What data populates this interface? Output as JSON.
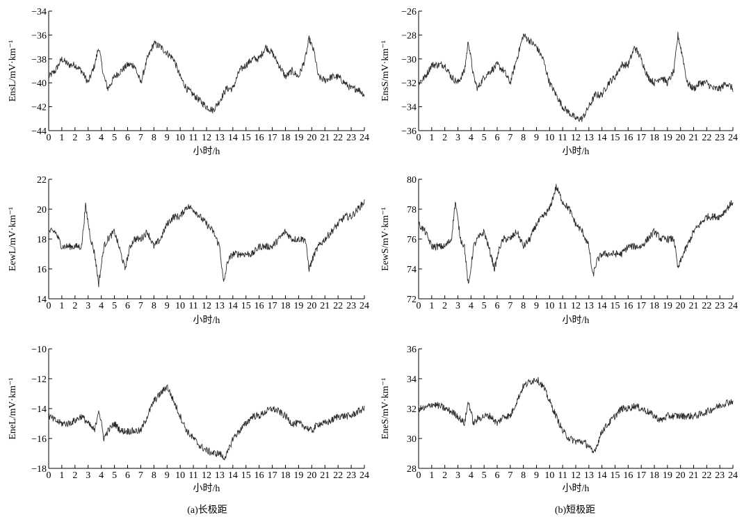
{
  "captions": [
    "(a)长极距",
    "(b)短极距"
  ],
  "chart_data": [
    {
      "type": "line",
      "ylabel": "EnsL/mV·km⁻¹",
      "xlabel": "小时/h",
      "xlim": [
        0,
        24
      ],
      "ylim": [
        -44,
        -34
      ],
      "yticks": [
        -44,
        -42,
        -40,
        -38,
        -36,
        -34
      ],
      "xticks": [
        0,
        1,
        2,
        3,
        4,
        5,
        6,
        7,
        8,
        9,
        10,
        11,
        12,
        13,
        14,
        15,
        16,
        17,
        18,
        19,
        20,
        21,
        22,
        23,
        24
      ],
      "series": [
        {
          "x": [
            0,
            0.5,
            1,
            1.5,
            2,
            2.5,
            3,
            3.5,
            3.8,
            4.2,
            4.5,
            5,
            5.5,
            6,
            6.5,
            7,
            7.5,
            8,
            8.5,
            9,
            9.5,
            10,
            10.5,
            11,
            11.5,
            12,
            12.5,
            13,
            13.5,
            14,
            14.5,
            15,
            15.5,
            16,
            16.5,
            17,
            17.5,
            18,
            18.5,
            19,
            19.5,
            19.8,
            20.2,
            20.5,
            21,
            21.5,
            22,
            22.5,
            23,
            23.5,
            24
          ],
          "y": [
            -39.5,
            -39,
            -38,
            -38.5,
            -38.5,
            -39,
            -40,
            -38.5,
            -37,
            -39.5,
            -40.5,
            -39.5,
            -39,
            -38.5,
            -38.5,
            -40,
            -38,
            -36.7,
            -37,
            -37.5,
            -38,
            -39.5,
            -40.5,
            -41,
            -41.5,
            -42,
            -42.3,
            -41.5,
            -40.5,
            -40.5,
            -39,
            -38.5,
            -38,
            -38,
            -37,
            -37.5,
            -38.5,
            -39.5,
            -39,
            -39.5,
            -38,
            -36.3,
            -37.5,
            -39.5,
            -39.8,
            -39.5,
            -39.5,
            -40,
            -40.5,
            -40.5,
            -41
          ]
        }
      ]
    },
    {
      "type": "line",
      "ylabel": "EnsS/mV·km⁻¹",
      "xlabel": "小时/h",
      "xlim": [
        0,
        24
      ],
      "ylim": [
        -36,
        -26
      ],
      "yticks": [
        -36,
        -34,
        -32,
        -30,
        -28,
        -26
      ],
      "xticks": [
        0,
        1,
        2,
        3,
        4,
        5,
        6,
        7,
        8,
        9,
        10,
        11,
        12,
        13,
        14,
        15,
        16,
        17,
        18,
        19,
        20,
        21,
        22,
        23,
        24
      ],
      "series": [
        {
          "x": [
            0,
            0.5,
            1,
            1.5,
            2,
            2.5,
            3,
            3.5,
            3.8,
            4.2,
            4.5,
            5,
            5.5,
            6,
            6.5,
            7,
            7.5,
            8,
            8.5,
            9,
            9.5,
            10,
            10.5,
            11,
            11.5,
            12,
            12.5,
            13,
            13.5,
            14,
            14.5,
            15,
            15.5,
            16,
            16.5,
            17,
            17.5,
            18,
            18.5,
            19,
            19.5,
            19.8,
            20.2,
            20.5,
            21,
            21.5,
            22,
            22.5,
            23,
            23.5,
            24
          ],
          "y": [
            -32,
            -31.5,
            -30.5,
            -30.5,
            -30.5,
            -31.5,
            -32,
            -31,
            -28.5,
            -31.5,
            -32.5,
            -31.5,
            -31,
            -30.5,
            -31,
            -32,
            -30,
            -28,
            -28.5,
            -29,
            -30,
            -32,
            -33,
            -34,
            -34.5,
            -35,
            -35,
            -34,
            -33,
            -33,
            -32,
            -31.5,
            -30.5,
            -30.5,
            -29,
            -30,
            -31.5,
            -32,
            -31.5,
            -32,
            -31,
            -28,
            -30,
            -32,
            -32.5,
            -32,
            -32,
            -32.5,
            -32.5,
            -32,
            -32.5
          ]
        }
      ]
    },
    {
      "type": "line",
      "ylabel": "EewL/mV·km⁻¹",
      "xlabel": "小时/h",
      "xlim": [
        0,
        24
      ],
      "ylim": [
        14,
        22
      ],
      "yticks": [
        14,
        16,
        18,
        20,
        22
      ],
      "xticks": [
        0,
        1,
        2,
        3,
        4,
        5,
        6,
        7,
        8,
        9,
        10,
        11,
        12,
        13,
        14,
        15,
        16,
        17,
        18,
        19,
        20,
        21,
        22,
        23,
        24
      ],
      "series": [
        {
          "x": [
            0,
            0.5,
            1,
            1.5,
            2,
            2.5,
            2.8,
            3.2,
            3.5,
            3.8,
            4.2,
            4.5,
            5,
            5.5,
            5.8,
            6.2,
            6.5,
            7,
            7.5,
            8,
            8.5,
            9,
            9.5,
            10,
            10.5,
            11,
            11.5,
            12,
            12.5,
            13,
            13.3,
            13.6,
            14,
            14.5,
            15,
            15.5,
            16,
            16.5,
            17,
            17.5,
            18,
            18.5,
            19,
            19.5,
            19.8,
            20.2,
            20.5,
            21,
            21.5,
            22,
            22.5,
            23,
            23.5,
            24
          ],
          "y": [
            18.5,
            18.5,
            17.5,
            17.5,
            17.5,
            17.5,
            20.2,
            18,
            17,
            15,
            17.5,
            18,
            18.5,
            17,
            16,
            17.5,
            18,
            18,
            18.5,
            17.5,
            18,
            19,
            19.5,
            19.5,
            20.2,
            20,
            19.5,
            19,
            18.5,
            17.5,
            15,
            16.5,
            17,
            17,
            17,
            17,
            17.5,
            17.5,
            17.5,
            18,
            18.5,
            18,
            18,
            18,
            16,
            17,
            17.5,
            18,
            18.5,
            19,
            19.5,
            19.5,
            20,
            20.5
          ]
        }
      ]
    },
    {
      "type": "line",
      "ylabel": "EewS/mV·km⁻¹",
      "xlabel": "小时/h",
      "xlim": [
        0,
        24
      ],
      "ylim": [
        72,
        80
      ],
      "yticks": [
        72,
        74,
        76,
        78,
        80
      ],
      "xticks": [
        0,
        1,
        2,
        3,
        4,
        5,
        6,
        7,
        8,
        9,
        10,
        11,
        12,
        13,
        14,
        15,
        16,
        17,
        18,
        19,
        20,
        21,
        22,
        23,
        24
      ],
      "series": [
        {
          "x": [
            0,
            0.5,
            1,
            1.5,
            2,
            2.5,
            2.8,
            3.2,
            3.5,
            3.8,
            4.2,
            4.5,
            5,
            5.5,
            5.8,
            6.2,
            6.5,
            7,
            7.5,
            8,
            8.5,
            9,
            9.5,
            10,
            10.5,
            11,
            11.5,
            12,
            12.5,
            13,
            13.3,
            13.6,
            14,
            14.5,
            15,
            15.5,
            16,
            16.5,
            17,
            17.5,
            18,
            18.5,
            19,
            19.5,
            19.8,
            20.2,
            20.5,
            21,
            21.5,
            22,
            22.5,
            23,
            23.5,
            24
          ],
          "y": [
            77,
            76.5,
            75.5,
            75.5,
            75.5,
            76,
            78.5,
            76,
            75.5,
            72.8,
            75.5,
            76,
            76.5,
            75,
            74,
            75.5,
            76,
            76,
            76.5,
            75.5,
            76,
            77,
            77.5,
            78,
            79.5,
            78.5,
            78,
            77,
            76.5,
            75.5,
            73.5,
            74.5,
            75,
            75,
            75,
            75,
            75.5,
            75.5,
            75.5,
            76,
            76.5,
            76,
            76,
            76,
            74,
            75,
            75.5,
            76.5,
            77,
            77.5,
            77.5,
            77.5,
            78,
            78.5
          ]
        }
      ]
    },
    {
      "type": "line",
      "ylabel": "EneL/mV·km⁻¹",
      "xlabel": "小时/h",
      "xlim": [
        0,
        24
      ],
      "ylim": [
        -18,
        -10
      ],
      "yticks": [
        -18,
        -16,
        -14,
        -12,
        -10
      ],
      "xticks": [
        0,
        1,
        2,
        3,
        4,
        5,
        6,
        7,
        8,
        9,
        10,
        11,
        12,
        13,
        14,
        15,
        16,
        17,
        18,
        19,
        20,
        21,
        22,
        23,
        24
      ],
      "series": [
        {
          "x": [
            0,
            0.5,
            1,
            1.5,
            2,
            2.5,
            3,
            3.5,
            3.8,
            4.2,
            4.5,
            5,
            5.5,
            6,
            6.5,
            7,
            7.5,
            8,
            8.5,
            9,
            9.5,
            10,
            10.5,
            11,
            11.5,
            12,
            12.5,
            13,
            13.3,
            13.6,
            14,
            14.5,
            15,
            15.5,
            16,
            16.5,
            17,
            17.5,
            18,
            18.5,
            19,
            19.5,
            20,
            20.5,
            21,
            21.5,
            22,
            22.5,
            23,
            23.5,
            24
          ],
          "y": [
            -14.5,
            -14.8,
            -15,
            -15,
            -14.8,
            -14.5,
            -15,
            -15.5,
            -14,
            -16,
            -15.5,
            -15,
            -15.5,
            -15.5,
            -15.5,
            -15.5,
            -14.5,
            -13.5,
            -13,
            -12.5,
            -13.5,
            -14.5,
            -15.5,
            -16,
            -16.5,
            -16.8,
            -17,
            -17,
            -17.3,
            -17,
            -16,
            -15.5,
            -15,
            -14.5,
            -14.5,
            -14.2,
            -14,
            -14.2,
            -14.5,
            -15,
            -15,
            -15.2,
            -15.5,
            -15,
            -15,
            -14.8,
            -14.5,
            -14.5,
            -14.5,
            -14.2,
            -14
          ]
        }
      ]
    },
    {
      "type": "line",
      "ylabel": "EneS/mV·km⁻¹",
      "xlabel": "小时/h",
      "xlim": [
        0,
        24
      ],
      "ylim": [
        28,
        36
      ],
      "yticks": [
        28,
        30,
        32,
        34,
        36
      ],
      "xticks": [
        0,
        1,
        2,
        3,
        4,
        5,
        6,
        7,
        8,
        9,
        10,
        11,
        12,
        13,
        14,
        15,
        16,
        17,
        18,
        19,
        20,
        21,
        22,
        23,
        24
      ],
      "series": [
        {
          "x": [
            0,
            0.5,
            1,
            1.5,
            2,
            2.5,
            3,
            3.5,
            3.8,
            4.2,
            4.5,
            5,
            5.5,
            6,
            6.5,
            7,
            7.5,
            8,
            8.5,
            9,
            9.5,
            10,
            10.5,
            11,
            11.5,
            12,
            12.5,
            13,
            13.3,
            13.6,
            14,
            14.5,
            15,
            15.5,
            16,
            16.5,
            17,
            17.5,
            18,
            18.5,
            19,
            19.5,
            20,
            20.5,
            21,
            21.5,
            22,
            22.5,
            23,
            23.5,
            24
          ],
          "y": [
            32,
            32,
            32.3,
            32.2,
            32,
            31.8,
            31.5,
            31,
            32.5,
            31,
            31.3,
            31.5,
            31.5,
            31,
            31.5,
            31.5,
            32.5,
            33.5,
            33.8,
            34,
            33.5,
            32.5,
            31.5,
            30.5,
            30,
            29.8,
            29.8,
            29.5,
            29,
            29.5,
            30.5,
            31,
            31.5,
            32,
            32,
            32.2,
            32,
            31.8,
            31.5,
            31.2,
            31.5,
            31.5,
            31.5,
            31.5,
            31.5,
            31.6,
            31.8,
            32,
            32.2,
            32.4,
            32.5
          ]
        }
      ]
    }
  ]
}
